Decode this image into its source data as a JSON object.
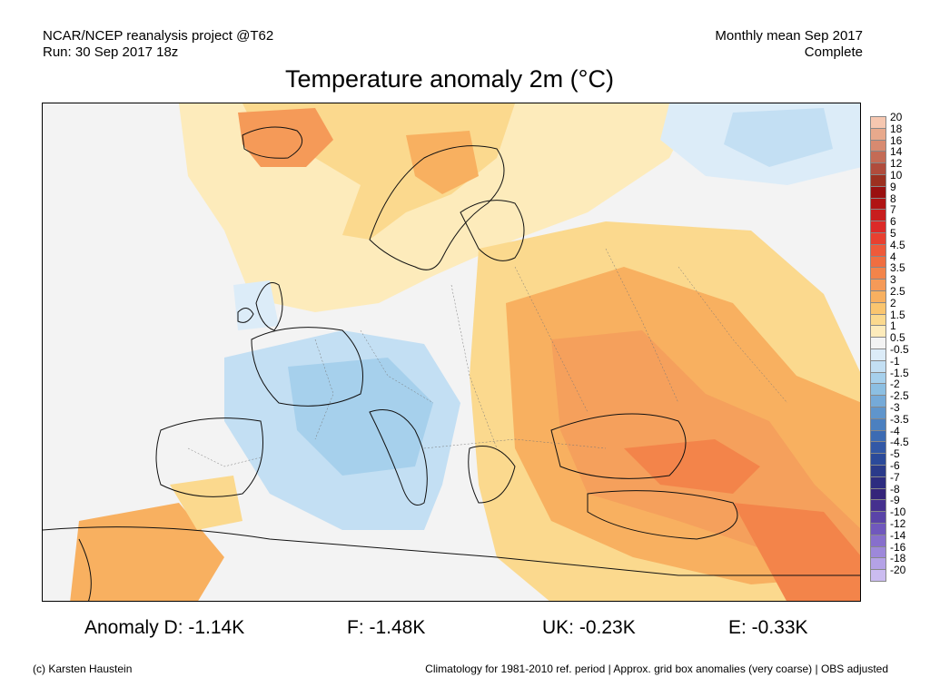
{
  "header": {
    "left_line1": "NCAR/NCEP reanalysis project @T62",
    "left_line2": "Run: 30 Sep 2017 18z",
    "right_line1": "Monthly mean Sep 2017",
    "right_line2": "Complete",
    "title": "Temperature anomaly 2m (°C)"
  },
  "stats": {
    "d": "Anomaly D: -1.14K",
    "f": "F: -1.48K",
    "uk": "UK: -0.23K",
    "e": "E: -0.33K"
  },
  "footer": {
    "credit": "(c) Karsten Haustein",
    "note": "Climatology for 1981-2010 ref. period | Approx. grid box anomalies (very coarse) | OBS adjusted"
  },
  "legend": {
    "labels": [
      "20",
      "18",
      "16",
      "14",
      "12",
      "10",
      "9",
      "8",
      "7",
      "6",
      "5",
      "4.5",
      "4",
      "3.5",
      "3",
      "2.5",
      "2",
      "1.5",
      "1",
      "0.5",
      "-0.5",
      "-1",
      "-1.5",
      "-2",
      "-2.5",
      "-3",
      "-3.5",
      "-4",
      "-4.5",
      "-5",
      "-6",
      "-7",
      "-8",
      "-9",
      "-10",
      "-12",
      "-14",
      "-16",
      "-18",
      "-20"
    ],
    "colors": [
      "#f6c7b0",
      "#e8a98c",
      "#d88a70",
      "#c46b55",
      "#b04c3c",
      "#9c3020",
      "#9a1010",
      "#b01414",
      "#c81e1e",
      "#dc2a28",
      "#e84030",
      "#ee5a3a",
      "#f06e40",
      "#f3844a",
      "#f59a58",
      "#f8b060",
      "#fac56f",
      "#fbd98e",
      "#fdebbb",
      "#f3f3f3",
      "#dcecf8",
      "#c3dff3",
      "#a6d0ec",
      "#8cbfe2",
      "#75aad8",
      "#5f95cc",
      "#4b80c0",
      "#3d6bb3",
      "#3258a6",
      "#2b4a9a",
      "#2a3a8a",
      "#2d2c80",
      "#34247a",
      "#45308e",
      "#5a44a8",
      "#7058bd",
      "#876fcc",
      "#9d88da",
      "#b4a2e6",
      "#cbbcf0"
    ]
  }
}
